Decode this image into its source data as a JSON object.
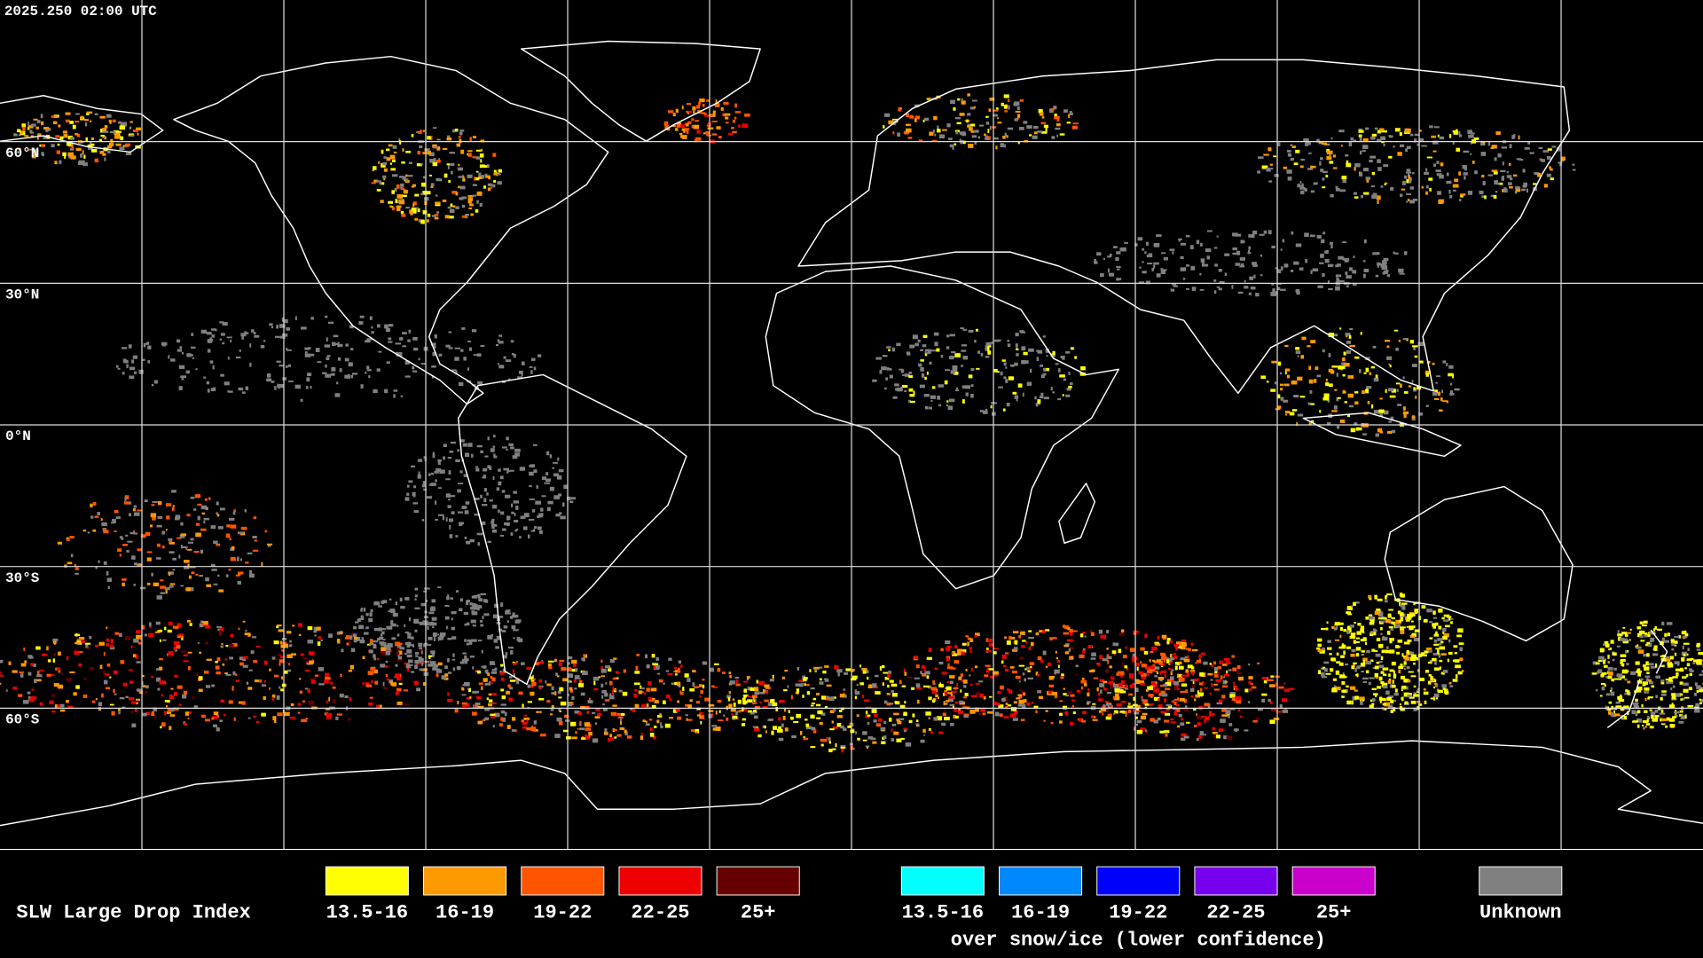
{
  "header": {
    "timestamp": "2025.250 02:00 UTC"
  },
  "map": {
    "latitude_labels": [
      "60°N",
      "30°N",
      "0°N",
      "30°S",
      "60°S"
    ]
  },
  "legend": {
    "title": "SLW Large Drop Index",
    "items": [
      {
        "label": "13.5-16",
        "color": "#ffff00"
      },
      {
        "label": "16-19",
        "color": "#ff9900"
      },
      {
        "label": "19-22",
        "color": "#ff5500"
      },
      {
        "label": "22-25",
        "color": "#ee0000"
      },
      {
        "label": "25+",
        "color": "#660000"
      }
    ],
    "snow_ice_items": [
      {
        "label": "13.5-16",
        "color": "#00ffff"
      },
      {
        "label": "16-19",
        "color": "#0088ff"
      },
      {
        "label": "19-22",
        "color": "#0000ff"
      },
      {
        "label": "22-25",
        "color": "#7700ee"
      },
      {
        "label": "25+",
        "color": "#cc00cc"
      }
    ],
    "snow_ice_caption": "over snow/ice (lower confidence)",
    "unknown": {
      "label": "Unknown",
      "color": "#808080"
    }
  }
}
